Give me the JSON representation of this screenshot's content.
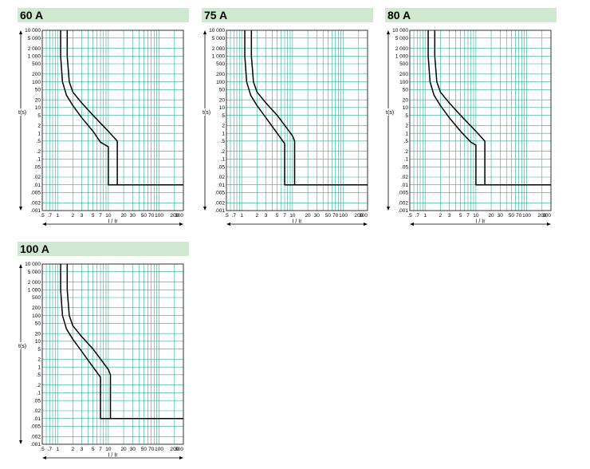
{
  "panels": [
    {
      "title": "60 A"
    },
    {
      "title": "75 A"
    },
    {
      "title": "80 A"
    },
    {
      "title": "100 A"
    }
  ],
  "colors": {
    "grid": "#2fae91",
    "header_bg": "#cfe8cf",
    "curve": "#000000"
  },
  "chart_data": [
    {
      "type": "line",
      "title": "60 A",
      "xlabel": "I / Ir",
      "ylabel": "t(s)",
      "xscale": "log",
      "yscale": "log",
      "xlim": [
        0.5,
        300
      ],
      "ylim": [
        0.001,
        10000
      ],
      "x_ticks": [
        ".5",
        ".7",
        "1",
        "2",
        "3",
        "5",
        "7",
        "10",
        "20",
        "30",
        "50",
        "70",
        "100",
        "200",
        "300"
      ],
      "y_ticks": [
        "10 000",
        "5 000",
        "2 000",
        "1 000",
        "500",
        "200",
        "100",
        "50",
        "20",
        "10",
        "5",
        "2",
        "1",
        ".5",
        ".2",
        ".1",
        ".05",
        ".02",
        ".01",
        ".005",
        ".002",
        ".001"
      ],
      "grid": true,
      "series": [
        {
          "x": [
            1.15,
            1.15,
            1.25,
            1.5,
            2,
            3,
            5,
            7,
            10,
            10,
            300
          ],
          "y": [
            10000,
            1000,
            100,
            30,
            12,
            4,
            1.2,
            0.45,
            0.3,
            0.01,
            0.01
          ]
        },
        {
          "x": [
            1.55,
            1.55,
            1.7,
            2,
            3,
            5,
            10,
            15,
            15,
            300
          ],
          "y": [
            10000,
            1000,
            100,
            40,
            15,
            5,
            1.2,
            0.5,
            0.01,
            0.01
          ]
        }
      ]
    },
    {
      "type": "line",
      "title": "75 A",
      "xlabel": "I / Ir",
      "ylabel": "t(s)",
      "xscale": "log",
      "yscale": "log",
      "xlim": [
        0.5,
        300
      ],
      "ylim": [
        0.001,
        10000
      ],
      "x_ticks": [
        ".5",
        ".7",
        "1",
        "2",
        "3",
        "5",
        "7",
        "10",
        "20",
        "30",
        "50",
        "70",
        "100",
        "200",
        "300"
      ],
      "y_ticks": [
        "10 000",
        "5 000",
        "2 000",
        "1 000",
        "500",
        "200",
        "100",
        "50",
        "20",
        "10",
        "5",
        "2",
        "1",
        ".5",
        ".2",
        ".1",
        ".05",
        ".02",
        ".01",
        ".005",
        ".002",
        ".001"
      ],
      "grid": true,
      "series": [
        {
          "x": [
            1.15,
            1.15,
            1.25,
            1.5,
            2,
            3,
            5,
            7,
            7,
            300
          ],
          "y": [
            10000,
            1000,
            100,
            30,
            12,
            4,
            1,
            0.4,
            0.01,
            0.01
          ]
        },
        {
          "x": [
            1.55,
            1.55,
            1.7,
            2,
            3,
            5,
            10,
            11,
            11,
            300
          ],
          "y": [
            10000,
            1000,
            100,
            40,
            15,
            5,
            0.8,
            0.5,
            0.01,
            0.01
          ]
        }
      ]
    },
    {
      "type": "line",
      "title": "80 A",
      "xlabel": "I / Ir",
      "ylabel": "t(s)",
      "xscale": "log",
      "yscale": "log",
      "xlim": [
        0.5,
        300
      ],
      "ylim": [
        0.001,
        10000
      ],
      "x_ticks": [
        ".5",
        ".7",
        "1",
        "2",
        "3",
        "5",
        "7",
        "10",
        "20",
        "30",
        "50",
        "70",
        "100",
        "200",
        "300"
      ],
      "y_ticks": [
        "10 000",
        "5 000",
        "2 000",
        "1 000",
        "500",
        "200",
        "100",
        "50",
        "20",
        "10",
        "5",
        "2",
        "1",
        ".5",
        ".2",
        ".1",
        ".05",
        ".02",
        ".01",
        ".005",
        ".002",
        ".001"
      ],
      "grid": true,
      "series": [
        {
          "x": [
            1.15,
            1.15,
            1.25,
            1.5,
            2,
            3,
            5,
            8,
            10,
            10,
            300
          ],
          "y": [
            10000,
            1000,
            100,
            30,
            12,
            4,
            1.2,
            0.45,
            0.35,
            0.01,
            0.01
          ]
        },
        {
          "x": [
            1.55,
            1.55,
            1.7,
            2,
            3,
            5,
            10,
            15,
            15,
            300
          ],
          "y": [
            10000,
            1000,
            100,
            40,
            15,
            5,
            1.2,
            0.5,
            0.01,
            0.01
          ]
        }
      ]
    },
    {
      "type": "line",
      "title": "100 A",
      "xlabel": "I / Ir",
      "ylabel": "t(s)",
      "xscale": "log",
      "yscale": "log",
      "xlim": [
        0.5,
        300
      ],
      "ylim": [
        0.001,
        10000
      ],
      "x_ticks": [
        ".5",
        ".7",
        "1",
        "2",
        "3",
        "5",
        "7",
        "10",
        "20",
        "30",
        "50",
        "70",
        "100",
        "200",
        "300"
      ],
      "y_ticks": [
        "10 000",
        "5 000",
        "2 000",
        "1 000",
        "500",
        "200",
        "100",
        "50",
        "20",
        "10",
        "5",
        "2",
        "1",
        ".5",
        ".2",
        ".1",
        ".05",
        ".02",
        ".01",
        ".005",
        ".002",
        ".001"
      ],
      "grid": true,
      "series": [
        {
          "x": [
            1.15,
            1.15,
            1.25,
            1.5,
            2,
            3,
            5,
            7,
            7,
            300
          ],
          "y": [
            10000,
            1000,
            100,
            30,
            12,
            4,
            1,
            0.4,
            0.01,
            0.01
          ]
        },
        {
          "x": [
            1.55,
            1.55,
            1.7,
            2,
            3,
            5,
            10,
            11,
            11,
            300
          ],
          "y": [
            10000,
            1000,
            100,
            40,
            15,
            5,
            0.8,
            0.5,
            0.01,
            0.01
          ]
        }
      ]
    }
  ]
}
